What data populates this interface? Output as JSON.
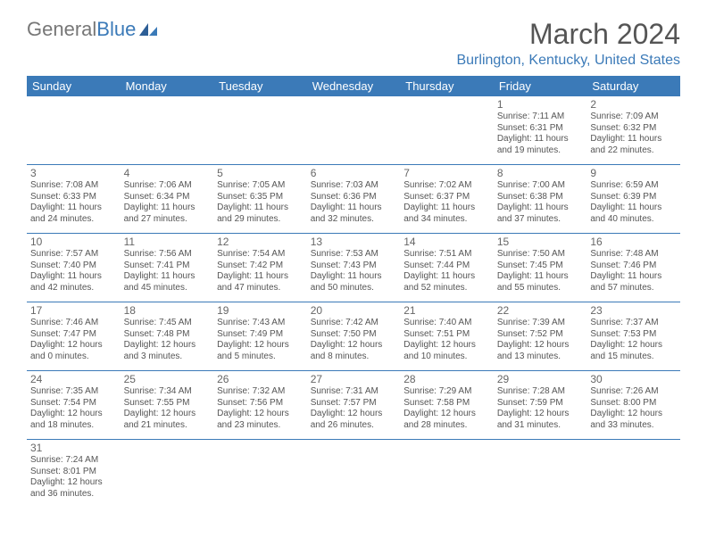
{
  "logo": {
    "text1": "General",
    "text2": "Blue"
  },
  "title": "March 2024",
  "location": "Burlington, Kentucky, United States",
  "colors": {
    "accent": "#3b7ab8",
    "text": "#555",
    "bg": "#ffffff"
  },
  "daynames": [
    "Sunday",
    "Monday",
    "Tuesday",
    "Wednesday",
    "Thursday",
    "Friday",
    "Saturday"
  ],
  "weeks": [
    [
      null,
      null,
      null,
      null,
      null,
      {
        "n": "1",
        "sr": "Sunrise: 7:11 AM",
        "ss": "Sunset: 6:31 PM",
        "dl": "Daylight: 11 hours and 19 minutes."
      },
      {
        "n": "2",
        "sr": "Sunrise: 7:09 AM",
        "ss": "Sunset: 6:32 PM",
        "dl": "Daylight: 11 hours and 22 minutes."
      }
    ],
    [
      {
        "n": "3",
        "sr": "Sunrise: 7:08 AM",
        "ss": "Sunset: 6:33 PM",
        "dl": "Daylight: 11 hours and 24 minutes."
      },
      {
        "n": "4",
        "sr": "Sunrise: 7:06 AM",
        "ss": "Sunset: 6:34 PM",
        "dl": "Daylight: 11 hours and 27 minutes."
      },
      {
        "n": "5",
        "sr": "Sunrise: 7:05 AM",
        "ss": "Sunset: 6:35 PM",
        "dl": "Daylight: 11 hours and 29 minutes."
      },
      {
        "n": "6",
        "sr": "Sunrise: 7:03 AM",
        "ss": "Sunset: 6:36 PM",
        "dl": "Daylight: 11 hours and 32 minutes."
      },
      {
        "n": "7",
        "sr": "Sunrise: 7:02 AM",
        "ss": "Sunset: 6:37 PM",
        "dl": "Daylight: 11 hours and 34 minutes."
      },
      {
        "n": "8",
        "sr": "Sunrise: 7:00 AM",
        "ss": "Sunset: 6:38 PM",
        "dl": "Daylight: 11 hours and 37 minutes."
      },
      {
        "n": "9",
        "sr": "Sunrise: 6:59 AM",
        "ss": "Sunset: 6:39 PM",
        "dl": "Daylight: 11 hours and 40 minutes."
      }
    ],
    [
      {
        "n": "10",
        "sr": "Sunrise: 7:57 AM",
        "ss": "Sunset: 7:40 PM",
        "dl": "Daylight: 11 hours and 42 minutes."
      },
      {
        "n": "11",
        "sr": "Sunrise: 7:56 AM",
        "ss": "Sunset: 7:41 PM",
        "dl": "Daylight: 11 hours and 45 minutes."
      },
      {
        "n": "12",
        "sr": "Sunrise: 7:54 AM",
        "ss": "Sunset: 7:42 PM",
        "dl": "Daylight: 11 hours and 47 minutes."
      },
      {
        "n": "13",
        "sr": "Sunrise: 7:53 AM",
        "ss": "Sunset: 7:43 PM",
        "dl": "Daylight: 11 hours and 50 minutes."
      },
      {
        "n": "14",
        "sr": "Sunrise: 7:51 AM",
        "ss": "Sunset: 7:44 PM",
        "dl": "Daylight: 11 hours and 52 minutes."
      },
      {
        "n": "15",
        "sr": "Sunrise: 7:50 AM",
        "ss": "Sunset: 7:45 PM",
        "dl": "Daylight: 11 hours and 55 minutes."
      },
      {
        "n": "16",
        "sr": "Sunrise: 7:48 AM",
        "ss": "Sunset: 7:46 PM",
        "dl": "Daylight: 11 hours and 57 minutes."
      }
    ],
    [
      {
        "n": "17",
        "sr": "Sunrise: 7:46 AM",
        "ss": "Sunset: 7:47 PM",
        "dl": "Daylight: 12 hours and 0 minutes."
      },
      {
        "n": "18",
        "sr": "Sunrise: 7:45 AM",
        "ss": "Sunset: 7:48 PM",
        "dl": "Daylight: 12 hours and 3 minutes."
      },
      {
        "n": "19",
        "sr": "Sunrise: 7:43 AM",
        "ss": "Sunset: 7:49 PM",
        "dl": "Daylight: 12 hours and 5 minutes."
      },
      {
        "n": "20",
        "sr": "Sunrise: 7:42 AM",
        "ss": "Sunset: 7:50 PM",
        "dl": "Daylight: 12 hours and 8 minutes."
      },
      {
        "n": "21",
        "sr": "Sunrise: 7:40 AM",
        "ss": "Sunset: 7:51 PM",
        "dl": "Daylight: 12 hours and 10 minutes."
      },
      {
        "n": "22",
        "sr": "Sunrise: 7:39 AM",
        "ss": "Sunset: 7:52 PM",
        "dl": "Daylight: 12 hours and 13 minutes."
      },
      {
        "n": "23",
        "sr": "Sunrise: 7:37 AM",
        "ss": "Sunset: 7:53 PM",
        "dl": "Daylight: 12 hours and 15 minutes."
      }
    ],
    [
      {
        "n": "24",
        "sr": "Sunrise: 7:35 AM",
        "ss": "Sunset: 7:54 PM",
        "dl": "Daylight: 12 hours and 18 minutes."
      },
      {
        "n": "25",
        "sr": "Sunrise: 7:34 AM",
        "ss": "Sunset: 7:55 PM",
        "dl": "Daylight: 12 hours and 21 minutes."
      },
      {
        "n": "26",
        "sr": "Sunrise: 7:32 AM",
        "ss": "Sunset: 7:56 PM",
        "dl": "Daylight: 12 hours and 23 minutes."
      },
      {
        "n": "27",
        "sr": "Sunrise: 7:31 AM",
        "ss": "Sunset: 7:57 PM",
        "dl": "Daylight: 12 hours and 26 minutes."
      },
      {
        "n": "28",
        "sr": "Sunrise: 7:29 AM",
        "ss": "Sunset: 7:58 PM",
        "dl": "Daylight: 12 hours and 28 minutes."
      },
      {
        "n": "29",
        "sr": "Sunrise: 7:28 AM",
        "ss": "Sunset: 7:59 PM",
        "dl": "Daylight: 12 hours and 31 minutes."
      },
      {
        "n": "30",
        "sr": "Sunrise: 7:26 AM",
        "ss": "Sunset: 8:00 PM",
        "dl": "Daylight: 12 hours and 33 minutes."
      }
    ],
    [
      {
        "n": "31",
        "sr": "Sunrise: 7:24 AM",
        "ss": "Sunset: 8:01 PM",
        "dl": "Daylight: 12 hours and 36 minutes."
      },
      null,
      null,
      null,
      null,
      null,
      null
    ]
  ]
}
